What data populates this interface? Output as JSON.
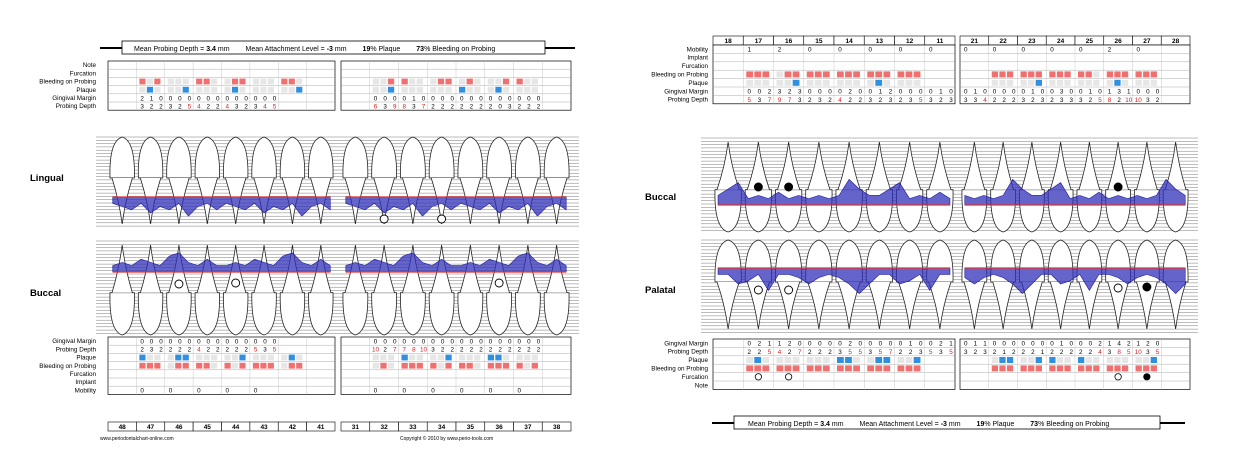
{
  "summary": {
    "depth_label": "Mean Probing Depth = ",
    "depth_value": "3.4",
    "depth_unit": "mm",
    "attach_label": "Mean Attachment Level = ",
    "attach_value": "-3",
    "attach_unit": "mm",
    "plaque_value": "19",
    "plaque_unit": "% Plaque",
    "bleed_value": "73",
    "bleed_unit": "% Bleeding on Probing"
  },
  "lower_chart": {
    "lingual_label": "Lingual",
    "buccal_label": "Buccal",
    "top_rows": [
      "Note",
      "Furcation",
      "Bleeding on Probing",
      "Plaque",
      "Gingival Margin",
      "Probing Depth"
    ],
    "bottom_rows": [
      "Gingival Margin",
      "Probing Depth",
      "Plaque",
      "Bleeding on Probing",
      "Furcation",
      "Implant",
      "Mobility"
    ],
    "teeth": [
      "48",
      "47",
      "46",
      "45",
      "44",
      "43",
      "42",
      "41",
      "31",
      "32",
      "33",
      "34",
      "35",
      "36",
      "37",
      "38"
    ],
    "lingual_gm": [
      "",
      "2 1 0",
      "0 0 0",
      "0 0 0",
      "0 0 0",
      "0 0 0",
      "",
      "",
      "",
      "0 0 0",
      "0 1 0",
      "0 0 0",
      "0 0 0",
      "0 0 0",
      "0 0 0",
      ""
    ],
    "lingual_pd": [
      "",
      "3 2 2",
      "3 2 5",
      "4 2 2",
      "4 3 2",
      "3 4 5",
      "",
      "",
      "",
      "6 3 9",
      "8 3 7",
      "2 2 2",
      "2 2 2",
      "2 0 3",
      "2 2 2",
      ""
    ],
    "buccal_gm": [
      "",
      "0 0 0",
      "0 0 0",
      "0 0 0",
      "0 0 0",
      "0 0 0",
      "",
      "",
      "",
      "0 0 0",
      "0 0 0",
      "0 0 0",
      "0 0 0",
      "0 0 0",
      "0 0 0",
      ""
    ],
    "buccal_pd": [
      "",
      "2 3 2",
      "2 2 2",
      "4 2 2",
      "2 2 2",
      "5 3 5",
      "",
      "",
      "",
      "10 2 7",
      "7 8 10",
      "3 2 2",
      "2 2 2",
      "2 2 2",
      "2 2 2",
      ""
    ],
    "mobility": [
      "",
      "0",
      "0",
      "0",
      "0",
      "0",
      "",
      "",
      "",
      "0",
      "0",
      "0",
      "0",
      "0",
      "0",
      ""
    ],
    "website": "www.periodontalchart-online.com",
    "copyright": "Copyright © 2010 by www.perio-tools.com"
  },
  "upper_chart": {
    "buccal_label": "Buccal",
    "palatal_label": "Palatal",
    "top_rows": [
      "Mobility",
      "Implant",
      "Furcation",
      "Bleeding on Probing",
      "Plaque",
      "Gingival Margin",
      "Probing Depth"
    ],
    "bottom_rows": [
      "Gingival Margin",
      "Probing Depth",
      "Plaque",
      "Bleeding on Probing",
      "Furcation",
      "Note"
    ],
    "teeth": [
      "18",
      "17",
      "16",
      "15",
      "14",
      "13",
      "12",
      "11",
      "21",
      "22",
      "23",
      "24",
      "25",
      "26",
      "27",
      "28"
    ],
    "mobility": [
      "",
      "1",
      "2",
      "0",
      "0",
      "0",
      "0",
      "0",
      "0",
      "0",
      "0",
      "0",
      "0",
      "2",
      "0",
      ""
    ],
    "buccal_gm": [
      "",
      "0 0 2",
      "3 2 3",
      "0 0 0",
      "0 2 0",
      "0 1 2",
      "0 0 0",
      "0 1 0",
      "0 1 0",
      "0 0 0",
      "0 1 0",
      "0 3 0",
      "0 1 0",
      "1 3 1",
      "0 0 0",
      ""
    ],
    "buccal_pd": [
      "",
      "5 3 7",
      "9 7 3",
      "2 3 2",
      "4 2 2",
      "3 2 3",
      "2 3 5",
      "3 2 3",
      "3 3 4",
      "2 2 2",
      "3 2 3",
      "2 3 3",
      "3 2 5",
      "8 2 10",
      "10 3 2",
      ""
    ],
    "palatal_gm": [
      "",
      "0 2 1",
      "1 2 0",
      "0 0 0",
      "0 2 0",
      "0 0 0",
      "0 1 0",
      "0 2 1",
      "0 1 1",
      "0 0 0",
      "0 0 0",
      "0 1 0",
      "0 0 2",
      "1 4 2",
      "1 2 0",
      ""
    ],
    "palatal_pd": [
      "",
      "2 2 5",
      "4 2 7",
      "2 2 2",
      "3 5 5",
      "3 5 7",
      "2 2 3",
      "5 3 5",
      "3 2 3",
      "2 1 2",
      "2 2 1",
      "2 2 2",
      "2 2 4",
      "3 8 5",
      "10 3 5",
      ""
    ]
  },
  "colors": {
    "bleeding": "#f07070",
    "plaque": "#2f8fe0",
    "pocket_fill": "#3030b8",
    "gum_line": "#e03030",
    "empty_cell": "#e6e6e6",
    "red_digit": "#d02020"
  }
}
